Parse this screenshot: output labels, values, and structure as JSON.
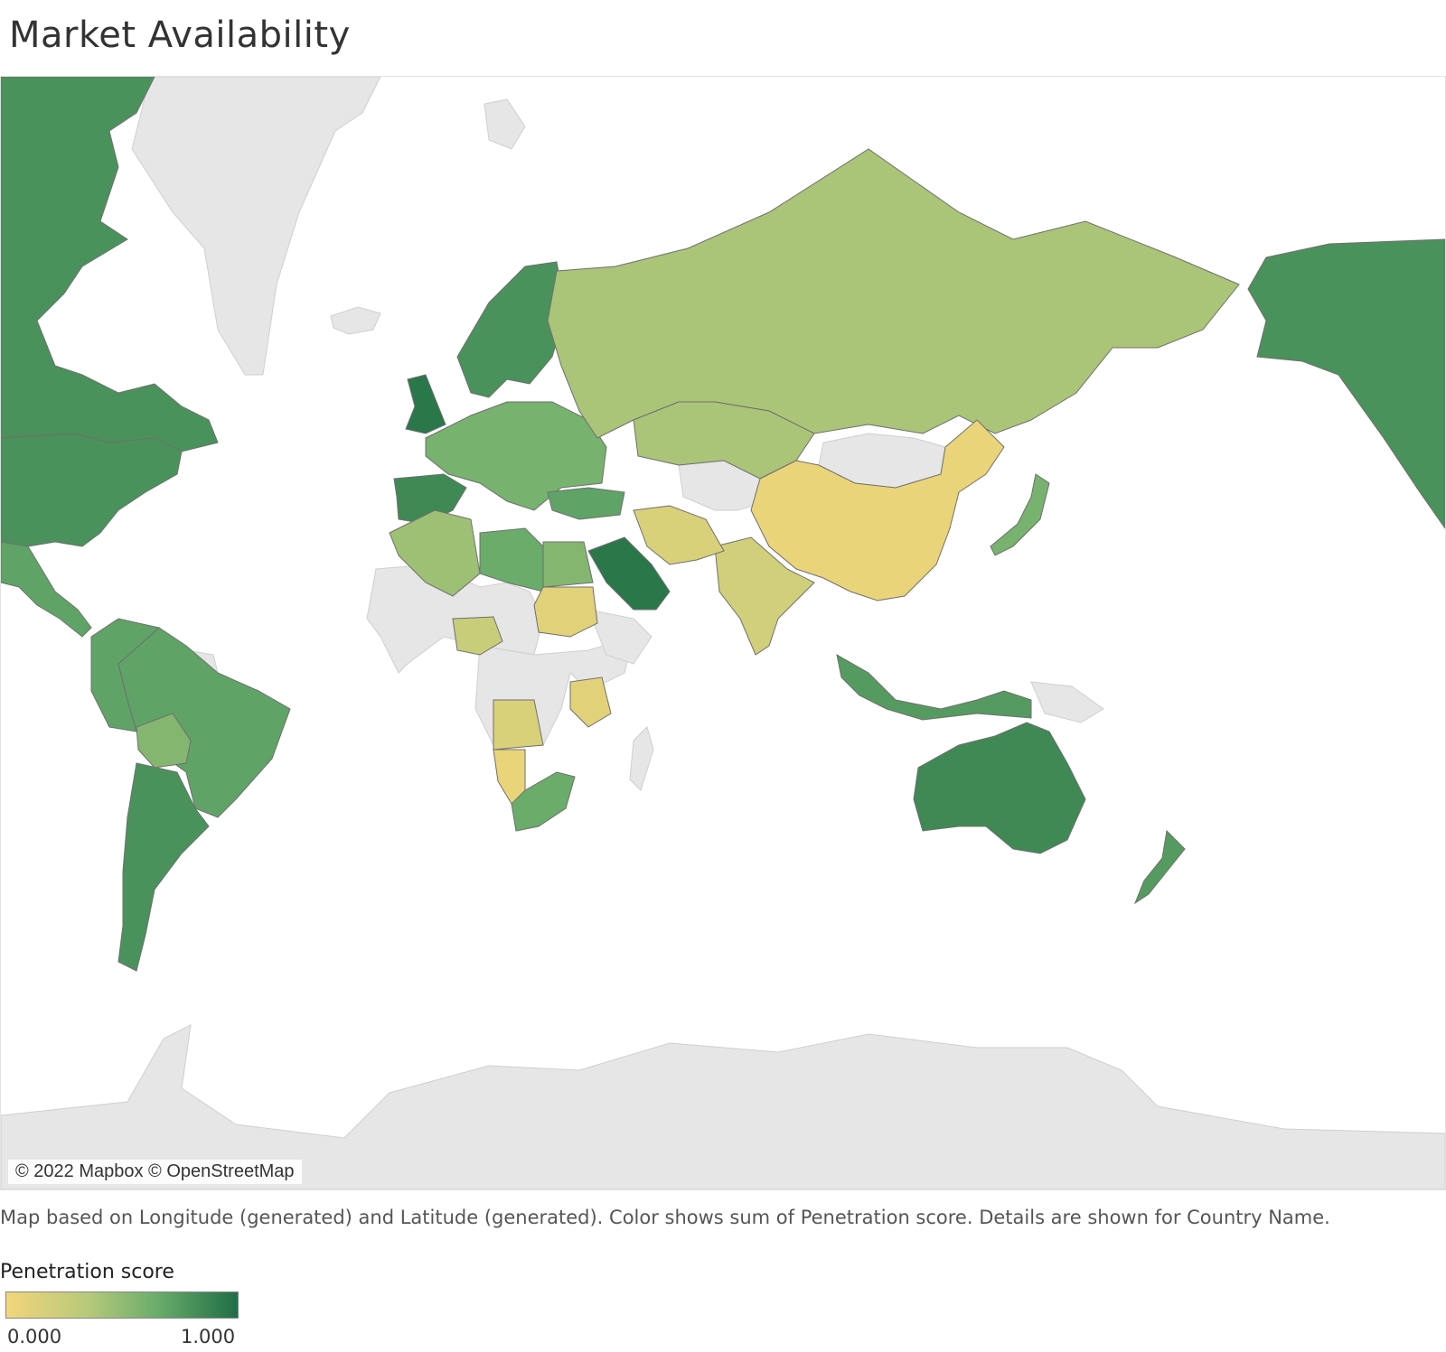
{
  "title": "Market Availability",
  "attribution": "© 2022 Mapbox © OpenStreetMap",
  "caption": "Map based on Longitude (generated) and Latitude (generated).  Color shows sum of Penetration score.  Details are shown for Country Name.",
  "legend": {
    "title": "Penetration score",
    "min_label": "0.000",
    "max_label": "1.000",
    "color_low": "#f2d67a",
    "color_high": "#1f6e45"
  },
  "colors": {
    "background": "#ffffff",
    "no_data_land": "#e6e6e6",
    "border": "#6f6f6f"
  },
  "map_data": {
    "type": "choropleth",
    "measure": "Penetration score",
    "regions": [
      {
        "name": "Canada",
        "score": 0.8
      },
      {
        "name": "United States",
        "score": 0.8
      },
      {
        "name": "Mexico",
        "score": 0.7
      },
      {
        "name": "Brazil",
        "score": 0.7
      },
      {
        "name": "Argentina",
        "score": 0.8
      },
      {
        "name": "Bolivia",
        "score": 0.55
      },
      {
        "name": "United Kingdom",
        "score": 0.95
      },
      {
        "name": "Spain",
        "score": 0.85
      },
      {
        "name": "Scandinavia",
        "score": 0.8
      },
      {
        "name": "Europe",
        "score": 0.6
      },
      {
        "name": "Russia",
        "score": 0.4
      },
      {
        "name": "Kazakhstan",
        "score": 0.4
      },
      {
        "name": "China",
        "score": 0.05
      },
      {
        "name": "India",
        "score": 0.2
      },
      {
        "name": "Iran",
        "score": 0.15
      },
      {
        "name": "Saudi Arabia",
        "score": 0.95
      },
      {
        "name": "Turkey",
        "score": 0.7
      },
      {
        "name": "Algeria",
        "score": 0.45
      },
      {
        "name": "Libya",
        "score": 0.65
      },
      {
        "name": "Egypt",
        "score": 0.55
      },
      {
        "name": "Sudan",
        "score": 0.1
      },
      {
        "name": "Nigeria",
        "score": 0.25
      },
      {
        "name": "Angola",
        "score": 0.15
      },
      {
        "name": "Namibia",
        "score": 0.05
      },
      {
        "name": "Tanzania",
        "score": 0.1
      },
      {
        "name": "South Africa",
        "score": 0.65
      },
      {
        "name": "Japan",
        "score": 0.6
      },
      {
        "name": "Indonesia",
        "score": 0.75
      },
      {
        "name": "Australia",
        "score": 0.85
      },
      {
        "name": "New Zealand",
        "score": 0.75
      }
    ]
  }
}
